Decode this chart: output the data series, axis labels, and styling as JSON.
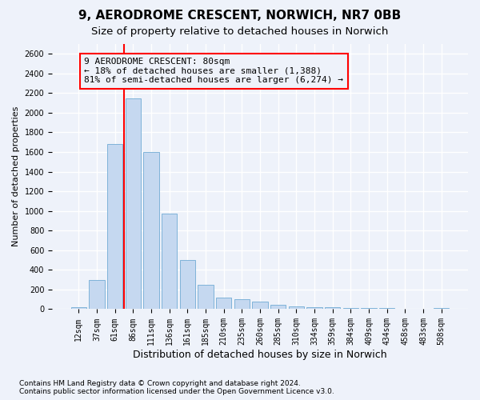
{
  "title": "9, AERODROME CRESCENT, NORWICH, NR7 0BB",
  "subtitle": "Size of property relative to detached houses in Norwich",
  "xlabel": "Distribution of detached houses by size in Norwich",
  "ylabel": "Number of detached properties",
  "footnote1": "Contains HM Land Registry data © Crown copyright and database right 2024.",
  "footnote2": "Contains public sector information licensed under the Open Government Licence v3.0.",
  "categories": [
    "12sqm",
    "37sqm",
    "61sqm",
    "86sqm",
    "111sqm",
    "136sqm",
    "161sqm",
    "185sqm",
    "210sqm",
    "235sqm",
    "260sqm",
    "285sqm",
    "310sqm",
    "334sqm",
    "359sqm",
    "384sqm",
    "409sqm",
    "434sqm",
    "458sqm",
    "483sqm",
    "508sqm"
  ],
  "values": [
    20,
    300,
    1680,
    2150,
    1600,
    970,
    500,
    245,
    120,
    100,
    75,
    45,
    25,
    20,
    20,
    15,
    10,
    10,
    5,
    5,
    15
  ],
  "bar_color": "#c5d8f0",
  "bar_edge_color": "#7fb3d9",
  "vline_color": "red",
  "vline_xidx": 2.5,
  "annotation_line1": "9 AERODROME CRESCENT: 80sqm",
  "annotation_line2": "← 18% of detached houses are smaller (1,388)",
  "annotation_line3": "81% of semi-detached houses are larger (6,274) →",
  "annotation_box_edgecolor": "red",
  "ylim_max": 2700,
  "yticks": [
    0,
    200,
    400,
    600,
    800,
    1000,
    1200,
    1400,
    1600,
    1800,
    2000,
    2200,
    2400,
    2600
  ],
  "bg_color": "#eef2fa",
  "grid_color": "#ffffff",
  "title_fontsize": 11,
  "subtitle_fontsize": 9.5,
  "xlabel_fontsize": 9,
  "ylabel_fontsize": 8,
  "tick_fontsize": 7,
  "annot_fontsize": 8,
  "footnote_fontsize": 6.5
}
